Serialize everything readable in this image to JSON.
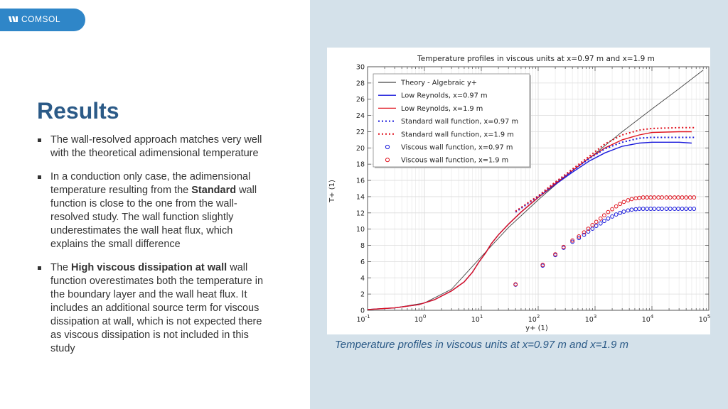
{
  "logo": {
    "text": "COMSOL"
  },
  "slide": {
    "title": "Results",
    "bullets": [
      {
        "parts": [
          {
            "text": "The wall-resolved approach matches very well with the theoretical adimensional temperature",
            "bold": false
          }
        ]
      },
      {
        "parts": [
          {
            "text": "In a conduction only case, the adimensional temperature resulting from the ",
            "bold": false
          },
          {
            "text": "Standard",
            "bold": true
          },
          {
            "text": " wall function is close to the one from the wall-resolved study. The wall function slightly underestimates the wall heat flux, which explains the small difference",
            "bold": false
          }
        ]
      },
      {
        "parts": [
          {
            "text": "The ",
            "bold": false
          },
          {
            "text": "High viscous dissipation at wall",
            "bold": true
          },
          {
            "text": " wall function overestimates both the temperature in the boundary layer and the wall heat flux. It includes an additional source term for viscous dissipation at wall, which is not expected there as viscous dissipation is not included in this study",
            "bold": false
          }
        ]
      }
    ],
    "caption": "Temperature profiles in viscous units at x=0.97 m and x=1.9 m"
  },
  "colors": {
    "title": "#2b5a87",
    "panel": "#d4e1ea",
    "logo": "#2f86c8",
    "blue": "#1a1adb",
    "red": "#e0121e",
    "theory": "#444444"
  },
  "chart_data": {
    "type": "line",
    "title": "Temperature profiles in viscous units at x=0.97 m and x=1.9 m",
    "xlabel": "y+ (1)",
    "ylabel": "T+ (1)",
    "xscale": "log",
    "xlim": [
      0.1,
      100000
    ],
    "ylim": [
      0,
      30
    ],
    "yticks": [
      0,
      2,
      4,
      6,
      8,
      10,
      12,
      14,
      16,
      18,
      20,
      22,
      24,
      26,
      28,
      30
    ],
    "xticks": [
      {
        "value": 0.1,
        "base": "10",
        "exp": "-1"
      },
      {
        "value": 1,
        "base": "10",
        "exp": "0"
      },
      {
        "value": 10,
        "base": "10",
        "exp": "1"
      },
      {
        "value": 100,
        "base": "10",
        "exp": "2"
      },
      {
        "value": 1000,
        "base": "10",
        "exp": "3"
      },
      {
        "value": 10000,
        "base": "10",
        "exp": "4"
      },
      {
        "value": 100000,
        "base": "10",
        "exp": "5"
      }
    ],
    "grid": true,
    "legend_position": "top-left",
    "series": [
      {
        "name": "Theory - Algebraic y+",
        "style": "line",
        "color": "#444444",
        "dash": false,
        "points": [
          [
            0.1,
            0.1
          ],
          [
            0.3,
            0.3
          ],
          [
            1,
            0.9
          ],
          [
            3,
            2.6
          ],
          [
            10,
            6.6
          ],
          [
            30,
            10.2
          ],
          [
            100,
            13.6
          ],
          [
            300,
            16.5
          ],
          [
            1000,
            19.3
          ],
          [
            3000,
            22
          ],
          [
            10000,
            24.8
          ],
          [
            30000,
            27.3
          ],
          [
            80000,
            29.6
          ]
        ]
      },
      {
        "name": "Low Reynolds, x=0.97 m",
        "style": "line",
        "color": "#1a1adb",
        "dash": false,
        "points": [
          [
            0.1,
            0.1
          ],
          [
            0.3,
            0.3
          ],
          [
            0.8,
            0.7
          ],
          [
            1.5,
            1.3
          ],
          [
            3,
            2.4
          ],
          [
            5,
            3.5
          ],
          [
            7,
            4.7
          ],
          [
            9,
            5.9
          ],
          [
            12,
            7.1
          ],
          [
            15,
            8.2
          ],
          [
            20,
            9.3
          ],
          [
            30,
            10.6
          ],
          [
            50,
            12.1
          ],
          [
            100,
            13.9
          ],
          [
            200,
            15.5
          ],
          [
            400,
            17.0
          ],
          [
            800,
            18.4
          ],
          [
            1500,
            19.4
          ],
          [
            3000,
            20.2
          ],
          [
            6000,
            20.6
          ],
          [
            10000,
            20.7
          ],
          [
            30000,
            20.7
          ],
          [
            50000,
            20.6
          ]
        ]
      },
      {
        "name": "Low Reynolds, x=1.9 m",
        "style": "line",
        "color": "#e0121e",
        "dash": false,
        "points": [
          [
            0.1,
            0.1
          ],
          [
            0.3,
            0.3
          ],
          [
            0.8,
            0.7
          ],
          [
            1.5,
            1.3
          ],
          [
            3,
            2.4
          ],
          [
            5,
            3.5
          ],
          [
            7,
            4.7
          ],
          [
            9,
            5.9
          ],
          [
            12,
            7.1
          ],
          [
            15,
            8.2
          ],
          [
            20,
            9.3
          ],
          [
            30,
            10.6
          ],
          [
            50,
            12.1
          ],
          [
            100,
            13.9
          ],
          [
            200,
            15.6
          ],
          [
            400,
            17.2
          ],
          [
            800,
            18.8
          ],
          [
            1500,
            20.0
          ],
          [
            3000,
            21.0
          ],
          [
            6000,
            21.6
          ],
          [
            10000,
            21.9
          ],
          [
            30000,
            22.0
          ],
          [
            50000,
            22.0
          ]
        ]
      },
      {
        "name": "Standard wall function, x=0.97 m",
        "style": "dotted",
        "color": "#1a1adb",
        "dash": true,
        "points": [
          [
            40,
            12.1
          ],
          [
            100,
            14.0
          ],
          [
            200,
            15.7
          ],
          [
            400,
            17.2
          ],
          [
            800,
            18.7
          ],
          [
            1500,
            19.9
          ],
          [
            3000,
            20.7
          ],
          [
            6000,
            21.2
          ],
          [
            10000,
            21.3
          ],
          [
            30000,
            21.3
          ],
          [
            55000,
            21.3
          ]
        ]
      },
      {
        "name": "Standard wall function, x=1.9 m",
        "style": "dotted",
        "color": "#e0121e",
        "dash": true,
        "points": [
          [
            40,
            12.2
          ],
          [
            100,
            14.1
          ],
          [
            200,
            15.8
          ],
          [
            400,
            17.4
          ],
          [
            800,
            19.0
          ],
          [
            1500,
            20.5
          ],
          [
            3000,
            21.6
          ],
          [
            6000,
            22.2
          ],
          [
            10000,
            22.4
          ],
          [
            30000,
            22.5
          ],
          [
            55000,
            22.5
          ]
        ]
      },
      {
        "name": "Viscous wall function, x=0.97 m",
        "style": "markers",
        "color": "#1a1adb",
        "dash": false,
        "points": [
          [
            40,
            3.15
          ],
          [
            120,
            5.5
          ],
          [
            200,
            6.8
          ],
          [
            280,
            7.7
          ],
          [
            400,
            8.45
          ],
          [
            520,
            8.9
          ],
          [
            640,
            9.3
          ],
          [
            760,
            9.7
          ],
          [
            900,
            10.05
          ],
          [
            1050,
            10.4
          ],
          [
            1250,
            10.7
          ],
          [
            1450,
            11.0
          ],
          [
            1700,
            11.3
          ],
          [
            2000,
            11.55
          ],
          [
            2350,
            11.8
          ],
          [
            2750,
            12.0
          ],
          [
            3200,
            12.15
          ],
          [
            3800,
            12.3
          ],
          [
            4400,
            12.4
          ],
          [
            5200,
            12.45
          ],
          [
            6000,
            12.5
          ],
          [
            7000,
            12.5
          ],
          [
            8200,
            12.5
          ],
          [
            9500,
            12.5
          ],
          [
            11000,
            12.5
          ],
          [
            13000,
            12.5
          ],
          [
            15000,
            12.5
          ],
          [
            18000,
            12.5
          ],
          [
            21000,
            12.5
          ],
          [
            25000,
            12.5
          ],
          [
            29000,
            12.5
          ],
          [
            34000,
            12.5
          ],
          [
            40000,
            12.5
          ],
          [
            47000,
            12.5
          ],
          [
            55000,
            12.5
          ]
        ]
      },
      {
        "name": "Viscous wall function, x=1.9 m",
        "style": "markers",
        "color": "#e0121e",
        "dash": false,
        "points": [
          [
            40,
            3.2
          ],
          [
            120,
            5.6
          ],
          [
            200,
            6.9
          ],
          [
            280,
            7.8
          ],
          [
            400,
            8.6
          ],
          [
            520,
            9.1
          ],
          [
            640,
            9.6
          ],
          [
            760,
            10.05
          ],
          [
            900,
            10.5
          ],
          [
            1050,
            10.9
          ],
          [
            1250,
            11.3
          ],
          [
            1450,
            11.7
          ],
          [
            1700,
            12.1
          ],
          [
            2000,
            12.45
          ],
          [
            2350,
            12.8
          ],
          [
            2750,
            13.1
          ],
          [
            3200,
            13.35
          ],
          [
            3800,
            13.55
          ],
          [
            4400,
            13.7
          ],
          [
            5200,
            13.8
          ],
          [
            6000,
            13.85
          ],
          [
            7000,
            13.9
          ],
          [
            8200,
            13.9
          ],
          [
            9500,
            13.9
          ],
          [
            11000,
            13.9
          ],
          [
            13000,
            13.9
          ],
          [
            15000,
            13.9
          ],
          [
            18000,
            13.9
          ],
          [
            21000,
            13.9
          ],
          [
            25000,
            13.9
          ],
          [
            29000,
            13.9
          ],
          [
            34000,
            13.9
          ],
          [
            40000,
            13.9
          ],
          [
            47000,
            13.9
          ],
          [
            55000,
            13.9
          ]
        ]
      }
    ]
  }
}
